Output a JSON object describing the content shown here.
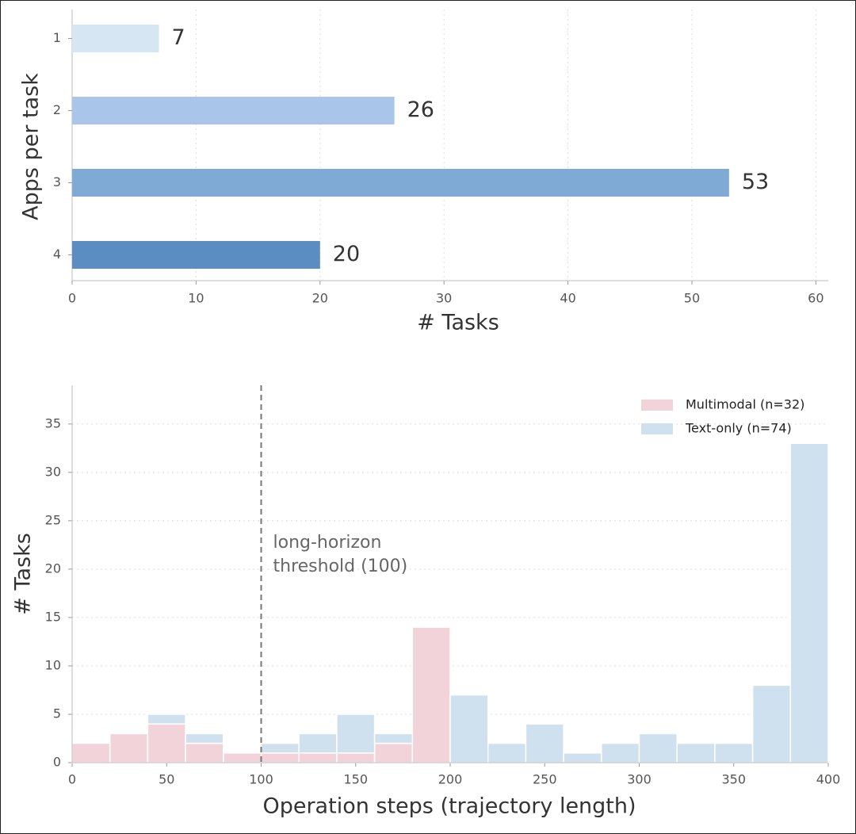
{
  "chart_data": [
    {
      "type": "barh",
      "ylabel": "Apps per task",
      "xlabel": "# Tasks",
      "categories": [
        "1",
        "2",
        "3",
        "4"
      ],
      "values": [
        7,
        26,
        53,
        20
      ],
      "colors": [
        "#d6e6f3",
        "#a9c5ea",
        "#80aad6",
        "#5b8cc2"
      ],
      "xlim": [
        0,
        61
      ],
      "xticks": [
        0,
        10,
        20,
        30,
        40,
        50,
        60
      ],
      "grid": true
    },
    {
      "type": "histogram",
      "stacked": true,
      "xlabel": "Operation steps (trajectory length)",
      "ylabel": "# Tasks",
      "bins": [
        0,
        20,
        40,
        60,
        80,
        100,
        120,
        140,
        160,
        180,
        200,
        220,
        240,
        260,
        280,
        300,
        320,
        340,
        360,
        380,
        400
      ],
      "series": [
        {
          "name": "Multimodal (n=32)",
          "color": "#f2d3da",
          "values": [
            2,
            3,
            4,
            2,
            1,
            1,
            1,
            1,
            2,
            14,
            0,
            0,
            0,
            0,
            0,
            0,
            0,
            0,
            0,
            0
          ]
        },
        {
          "name": "Text-only (n=74)",
          "color": "#cfe0ee",
          "values": [
            0,
            0,
            1,
            1,
            0,
            1,
            2,
            4,
            1,
            0,
            7,
            2,
            4,
            1,
            2,
            3,
            2,
            2,
            8,
            33
          ]
        }
      ],
      "threshold": 100,
      "annotation": [
        "long-horizon",
        "threshold (100)"
      ],
      "xlim": [
        0,
        400
      ],
      "xticks": [
        0,
        50,
        100,
        150,
        200,
        250,
        300,
        350,
        400
      ],
      "ylim": [
        0,
        39
      ],
      "yticks": [
        0,
        5,
        10,
        15,
        20,
        25,
        30,
        35
      ],
      "grid": true,
      "legend": "upper right"
    }
  ]
}
